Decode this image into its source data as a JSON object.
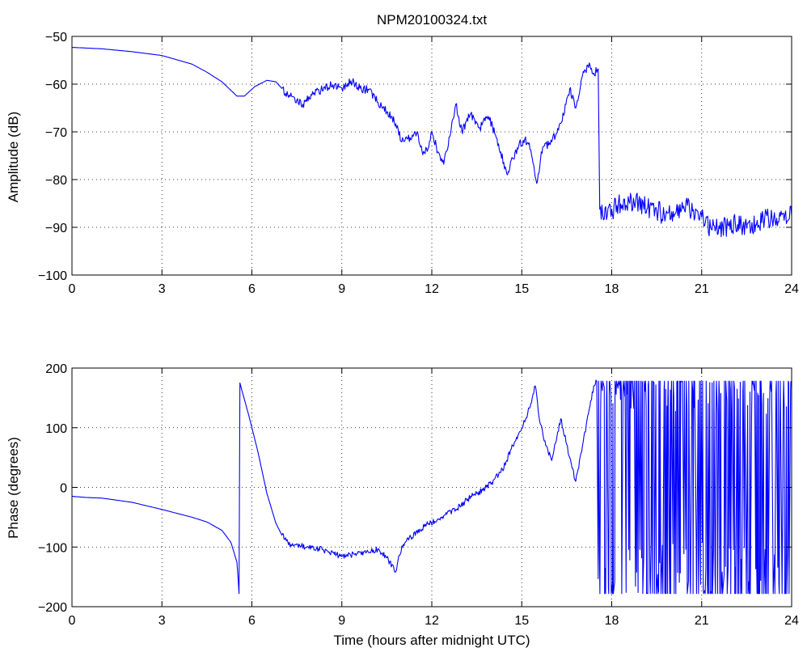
{
  "chart_data": [
    {
      "type": "line",
      "title": "NPM20100324.txt",
      "xlabel": "",
      "ylabel": "Amplitude (dB)",
      "xlim": [
        0,
        24
      ],
      "ylim": [
        -100,
        -50
      ],
      "xticks": [
        0,
        3,
        6,
        9,
        12,
        15,
        18,
        21,
        24
      ],
      "yticks": [
        -100,
        -90,
        -80,
        -70,
        -60,
        -50
      ],
      "xtick_labels": [
        "0",
        "3",
        "6",
        "9",
        "12",
        "15",
        "18",
        "21",
        "24"
      ],
      "ytick_labels": [
        "−100",
        "−90",
        "−80",
        "−70",
        "−60",
        "−50"
      ],
      "grid": true,
      "series": [
        {
          "color": "#0000ff",
          "x": [
            0,
            1,
            2,
            3,
            4,
            4.5,
            5,
            5.5,
            5.75,
            6.1,
            6.5,
            6.8,
            7.2,
            7.5,
            7.7,
            8.0,
            8.3,
            8.7,
            9.0,
            9.3,
            9.6,
            9.9,
            10.2,
            10.5,
            10.8,
            11.0,
            11.2,
            11.5,
            11.7,
            11.9,
            12.0,
            12.2,
            12.4,
            12.6,
            12.8,
            13.0,
            13.3,
            13.6,
            13.9,
            14.1,
            14.3,
            14.5,
            14.7,
            14.9,
            15.1,
            15.3,
            15.5,
            15.7,
            16.0,
            16.3,
            16.6,
            16.8,
            17.0,
            17.2,
            17.4,
            17.55,
            17.6,
            17.7,
            18.0,
            18.3,
            18.6,
            18.9,
            19.2,
            19.5,
            19.8,
            20.1,
            20.4,
            20.7,
            21.0,
            21.3,
            21.6,
            21.9,
            22.2,
            22.5,
            22.8,
            23.1,
            23.4,
            23.7,
            24.0
          ],
          "y": [
            -52.3,
            -52.6,
            -53.2,
            -54.0,
            -55.8,
            -57.5,
            -59.5,
            -62.5,
            -62.5,
            -60.5,
            -59.2,
            -59.5,
            -62.3,
            -63.3,
            -64.2,
            -62.3,
            -61.3,
            -60.1,
            -60.8,
            -59.3,
            -60.9,
            -61.2,
            -63.8,
            -65.8,
            -68.3,
            -72.1,
            -71.5,
            -70.2,
            -74.8,
            -73.1,
            -69.9,
            -74.2,
            -76.8,
            -71.0,
            -64.2,
            -69.8,
            -66.2,
            -69.1,
            -66.8,
            -70.4,
            -74.2,
            -78.8,
            -75.6,
            -72.9,
            -71.5,
            -73.8,
            -80.8,
            -73.2,
            -72.1,
            -68.2,
            -61.0,
            -65.0,
            -58.8,
            -56.0,
            -57.7,
            -56.8,
            -86.2,
            -87.5,
            -86.2,
            -85.1,
            -85.0,
            -84.5,
            -85.9,
            -86.5,
            -87.5,
            -87.3,
            -85.6,
            -86.6,
            -87.9,
            -90.1,
            -90.3,
            -89.7,
            -89.4,
            -90.2,
            -89.5,
            -88.3,
            -88.1,
            -87.2,
            -87.6
          ]
        }
      ]
    },
    {
      "type": "line",
      "title": "",
      "xlabel": "Time (hours after midnight UTC)",
      "ylabel": "Phase (degrees)",
      "xlim": [
        0,
        24
      ],
      "ylim": [
        -200,
        200
      ],
      "xticks": [
        0,
        3,
        6,
        9,
        12,
        15,
        18,
        21,
        24
      ],
      "yticks": [
        -200,
        -100,
        0,
        100,
        200
      ],
      "xtick_labels": [
        "0",
        "3",
        "6",
        "9",
        "12",
        "15",
        "18",
        "21",
        "24"
      ],
      "ytick_labels": [
        "−200",
        "−100",
        "0",
        "100",
        "200"
      ],
      "grid": true,
      "series": [
        {
          "color": "#0000ff",
          "x": [
            0,
            0.5,
            1,
            2,
            3,
            4,
            4.5,
            5.0,
            5.3,
            5.5,
            5.55,
            5.57,
            5.6,
            5.9,
            6.2,
            6.5,
            6.8,
            7.0,
            7.3,
            7.6,
            8.0,
            8.5,
            9.0,
            9.4,
            9.8,
            10.2,
            10.5,
            10.8,
            11.0,
            11.3,
            11.6,
            11.9,
            12.2,
            12.5,
            12.8,
            13.1,
            13.4,
            13.7,
            14.0,
            14.3,
            14.5,
            14.7,
            14.9,
            15.1,
            15.3,
            15.45,
            15.6,
            15.8,
            16.0,
            16.3,
            16.6,
            16.8,
            17.0,
            17.2,
            17.4,
            17.5
          ],
          "y": [
            -15,
            -17,
            -18,
            -25,
            -37,
            -50,
            -58,
            -72,
            -92,
            -125,
            -160,
            -178,
            175,
            120,
            60,
            -10,
            -60,
            -80,
            -96,
            -98,
            -101,
            -106,
            -116,
            -112,
            -110,
            -104,
            -118,
            -141,
            -98,
            -83,
            -70,
            -61,
            -53,
            -45,
            -37,
            -24,
            -12,
            -5,
            8,
            25,
            45,
            70,
            90,
            110,
            140,
            170,
            110,
            70,
            45,
            115,
            50,
            10,
            60,
            120,
            170,
            178
          ]
        }
      ]
    }
  ]
}
